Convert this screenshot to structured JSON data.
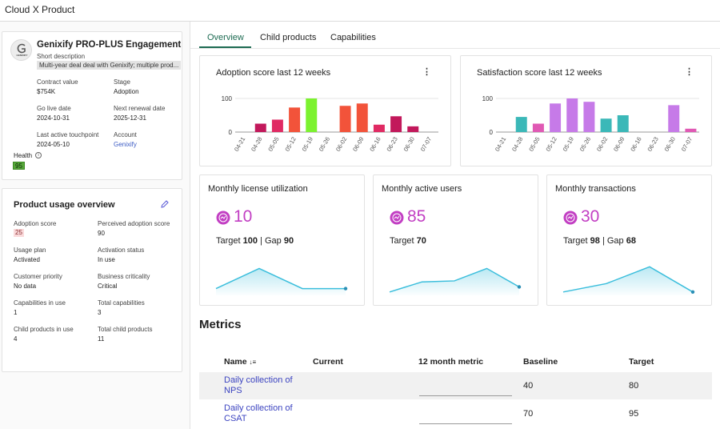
{
  "app": {
    "title": "Cloud X Product"
  },
  "account": {
    "logo_text": "GENIXIFY",
    "name": "Genixify PRO-PLUS Engagement",
    "short_description_label": "Short description",
    "short_description": "Multi-year deal deal with Genixify; multiple prod...",
    "fields": {
      "contract_value_label": "Contract value",
      "contract_value": "$754K",
      "stage_label": "Stage",
      "stage": "Adoption",
      "go_live_label": "Go live date",
      "go_live": "2024-10-31",
      "renewal_label": "Next renewal date",
      "renewal": "2025-12-31",
      "touchpoint_label": "Last active touchpoint",
      "touchpoint": "2024-05-10",
      "account_label": "Account",
      "account": "Genixify"
    },
    "health_label": "Health",
    "health_value": "95"
  },
  "usage": {
    "title": "Product usage overview",
    "adoption_score_label": "Adoption score",
    "adoption_score": "25",
    "perceived_label": "Perceived adoption score",
    "perceived": "90",
    "plan_label": "Usage plan",
    "plan": "Activated",
    "activation_label": "Activation status",
    "activation": "In use",
    "priority_label": "Customer priority",
    "priority": "No data",
    "criticality_label": "Business criticality",
    "criticality": "Critical",
    "cap_in_use_label": "Capabilities in use",
    "cap_in_use": "1",
    "total_cap_label": "Total capabilities",
    "total_cap": "3",
    "child_in_use_label": "Child products in use",
    "child_in_use": "4",
    "total_child_label": "Total child products",
    "total_child": "11"
  },
  "tabs": [
    {
      "label": "Overview",
      "active": true
    },
    {
      "label": "Child products",
      "active": false
    },
    {
      "label": "Capabilities",
      "active": false
    }
  ],
  "chart_data": [
    {
      "type": "bar",
      "title": "Adoption score last 12 weeks",
      "categories": [
        "04-21",
        "04-28",
        "05-05",
        "05-12",
        "05-19",
        "05-26",
        "06-02",
        "06-09",
        "06-16",
        "06-23",
        "06-30",
        "07-07"
      ],
      "values": [
        0,
        25,
        37,
        73,
        100,
        0,
        78,
        85,
        22,
        47,
        17,
        0
      ],
      "colors": [
        "#c2185b",
        "#c2185b",
        "#e02a63",
        "#f2533a",
        "#7cf22f",
        "#f2533a",
        "#f2533a",
        "#f2533a",
        "#e02a63",
        "#c2185b",
        "#c2185b",
        "#c2185b"
      ],
      "yticks": [
        0,
        100
      ],
      "ylim": [
        0,
        100
      ]
    },
    {
      "type": "bar",
      "title": "Satisfaction score last 12 weeks",
      "categories": [
        "04-21",
        "04-28",
        "05-05",
        "05-12",
        "05-19",
        "05-26",
        "06-02",
        "06-09",
        "06-16",
        "06-23",
        "06-30",
        "07-07"
      ],
      "values": [
        0,
        45,
        25,
        85,
        100,
        90,
        40,
        50,
        0,
        0,
        80,
        10
      ],
      "colors": [
        "#3bb8b8",
        "#3bb8b8",
        "#e059b4",
        "#c67ae8",
        "#c67ae8",
        "#c67ae8",
        "#3bb8b8",
        "#3bb8b8",
        "#3bb8b8",
        "#3bb8b8",
        "#c67ae8",
        "#e059b4"
      ],
      "yticks": [
        0,
        100
      ],
      "ylim": [
        0,
        100
      ]
    },
    {
      "type": "area",
      "title": "Monthly license utilization",
      "value": "10",
      "target_label": "Target",
      "target": "100",
      "gap_label": "Gap",
      "gap": "90",
      "values": [
        20,
        80,
        20,
        20
      ]
    },
    {
      "type": "area",
      "title": "Monthly active users",
      "value": "85",
      "target_label": "Target",
      "target": "70",
      "values": [
        10,
        40,
        43,
        80,
        25
      ]
    },
    {
      "type": "area",
      "title": "Monthly transactions",
      "value": "30",
      "target_label": "Target",
      "target": "98",
      "gap_label": "Gap",
      "gap": "68",
      "values": [
        10,
        35,
        85,
        10
      ]
    }
  ],
  "metrics": {
    "title": "Metrics",
    "columns": [
      "Name",
      "Current",
      "12 month metric",
      "Baseline",
      "Target"
    ],
    "rows": [
      {
        "name": "Daily collection of NPS",
        "current": "",
        "baseline": "40",
        "target": "80"
      },
      {
        "name": "Daily collection of CSAT",
        "current": "",
        "baseline": "70",
        "target": "95"
      }
    ]
  },
  "colors": {
    "accent": "#1d6b52",
    "link": "#3b5bc4",
    "metric_icon": "#c23fc3",
    "sparkline": "#3bbedc"
  }
}
